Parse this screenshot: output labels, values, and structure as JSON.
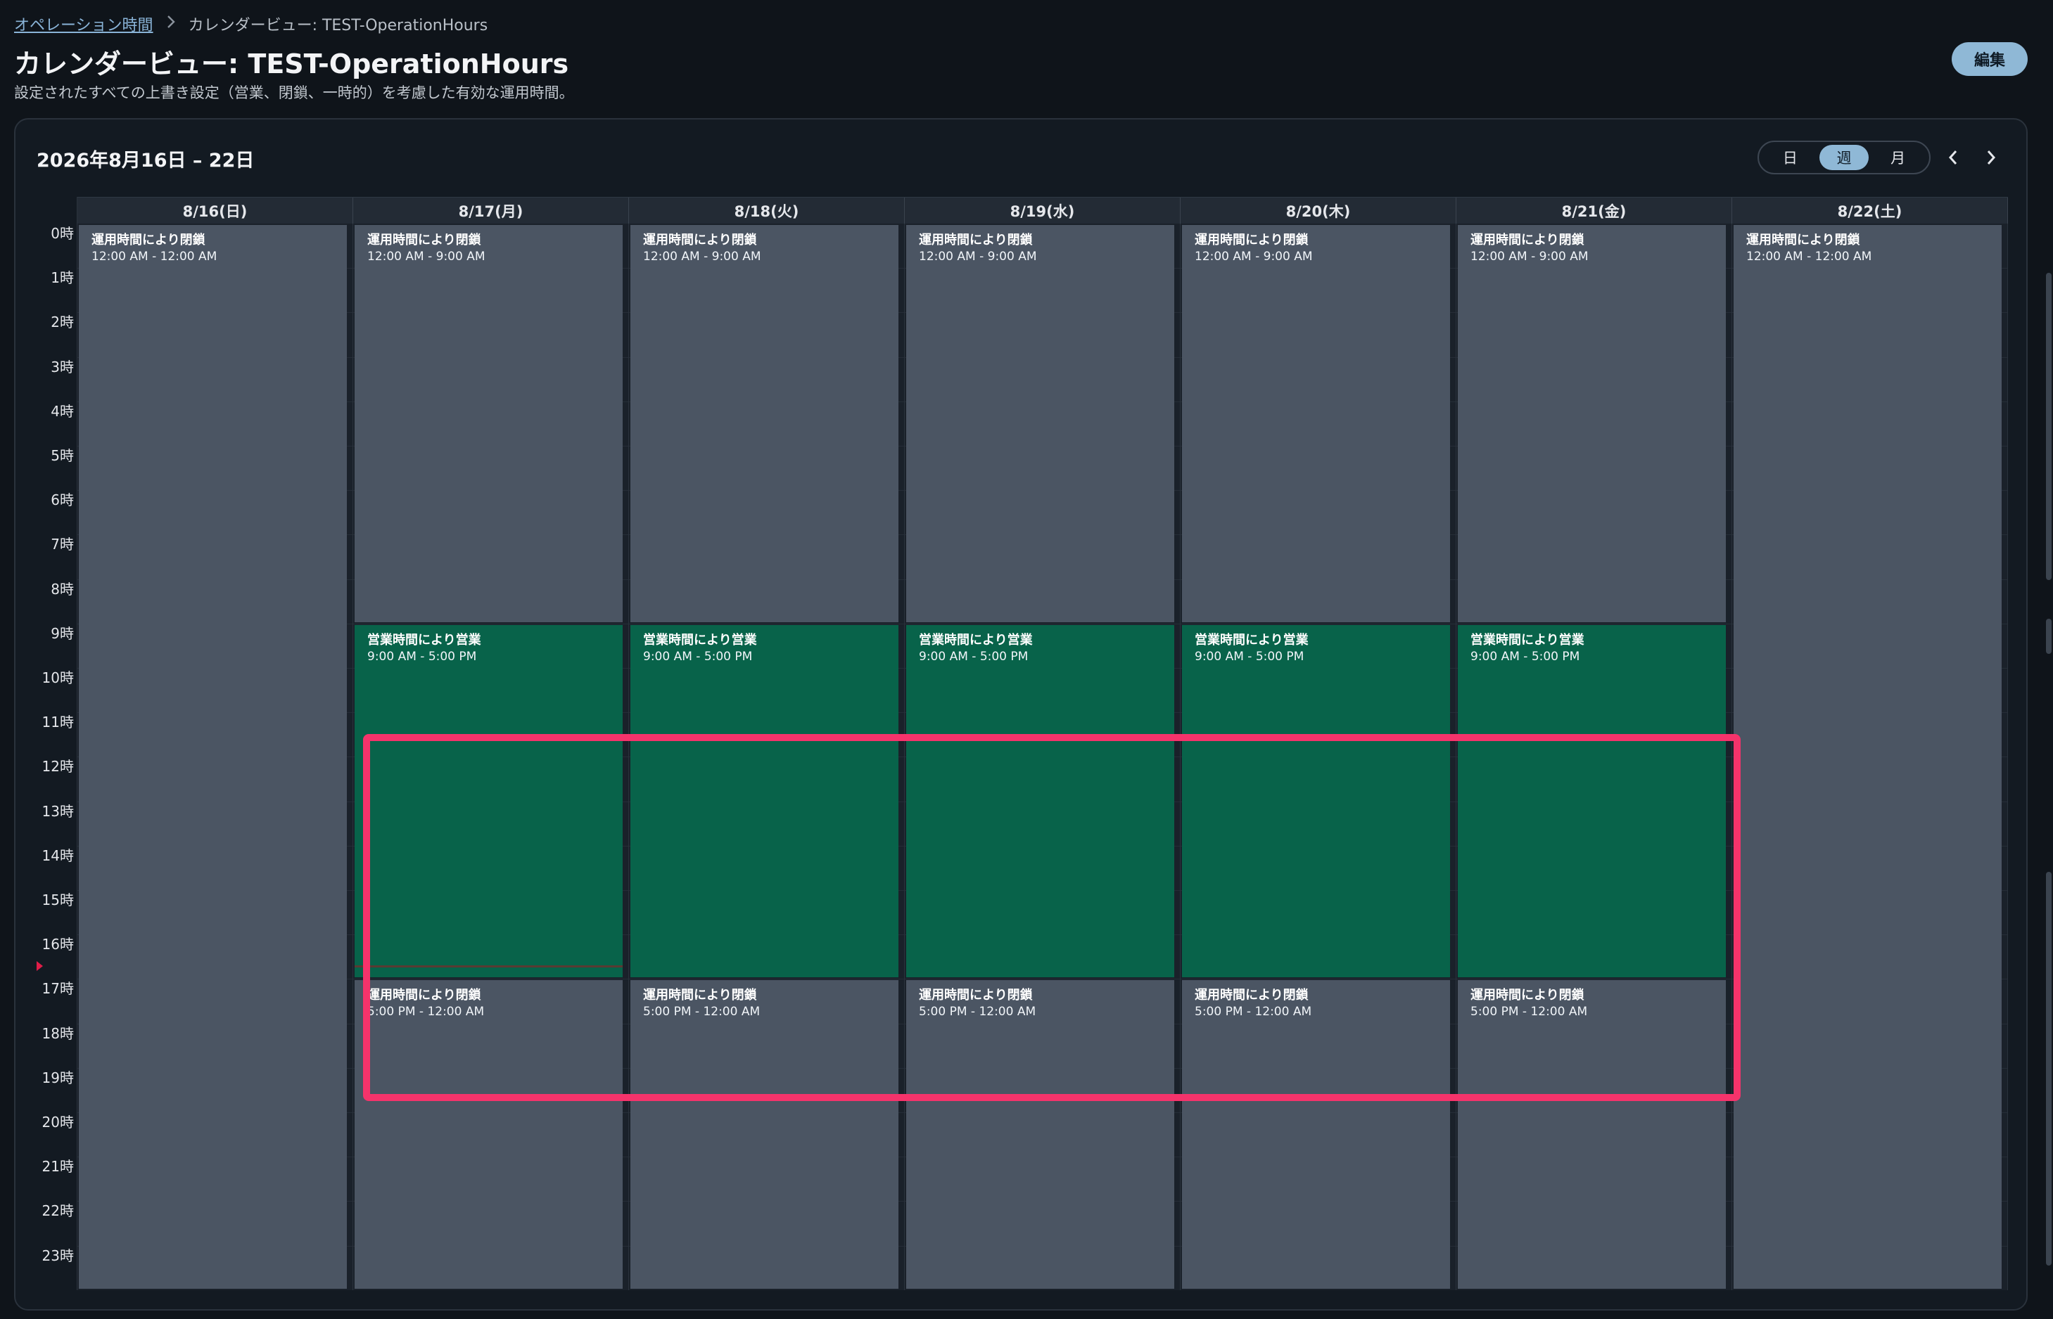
{
  "breadcrumb": {
    "parent": "オペレーション時間",
    "current": "カレンダービュー: TEST-OperationHours"
  },
  "page": {
    "title": "カレンダービュー: TEST-OperationHours",
    "subtitle": "設定されたすべての上書き設定（営業、閉鎖、一時的）を考慮した有効な運用時間。",
    "edit_label": "編集"
  },
  "calendar": {
    "range_label": "2026年8月16日 – 22日",
    "views": [
      "日",
      "週",
      "月"
    ],
    "active_view": "週",
    "hours": [
      "0時",
      "1時",
      "2時",
      "3時",
      "4時",
      "5時",
      "6時",
      "7時",
      "8時",
      "9時",
      "10時",
      "11時",
      "12時",
      "13時",
      "14時",
      "15時",
      "16時",
      "17時",
      "18時",
      "19時",
      "20時",
      "21時",
      "22時",
      "23時"
    ],
    "days": [
      {
        "label": "8/16(日)",
        "events": [
          {
            "type": "closed",
            "title": "運用時間により閉鎖",
            "time": "12:00 AM - 12:00 AM",
            "start": 0,
            "end": 24
          }
        ]
      },
      {
        "label": "8/17(月)",
        "events": [
          {
            "type": "closed",
            "title": "運用時間により閉鎖",
            "time": "12:00 AM - 9:00 AM",
            "start": 0,
            "end": 9
          },
          {
            "type": "open",
            "title": "営業時間により営業",
            "time": "9:00 AM - 5:00 PM",
            "start": 9,
            "end": 17
          },
          {
            "type": "closed",
            "title": "運用時間により閉鎖",
            "time": "5:00 PM - 12:00 AM",
            "start": 17,
            "end": 24
          }
        ]
      },
      {
        "label": "8/18(火)",
        "events": [
          {
            "type": "closed",
            "title": "運用時間により閉鎖",
            "time": "12:00 AM - 9:00 AM",
            "start": 0,
            "end": 9
          },
          {
            "type": "open",
            "title": "営業時間により営業",
            "time": "9:00 AM - 5:00 PM",
            "start": 9,
            "end": 17
          },
          {
            "type": "closed",
            "title": "運用時間により閉鎖",
            "time": "5:00 PM - 12:00 AM",
            "start": 17,
            "end": 24
          }
        ]
      },
      {
        "label": "8/19(水)",
        "events": [
          {
            "type": "closed",
            "title": "運用時間により閉鎖",
            "time": "12:00 AM - 9:00 AM",
            "start": 0,
            "end": 9
          },
          {
            "type": "open",
            "title": "営業時間により営業",
            "time": "9:00 AM - 5:00 PM",
            "start": 9,
            "end": 17
          },
          {
            "type": "closed",
            "title": "運用時間により閉鎖",
            "time": "5:00 PM - 12:00 AM",
            "start": 17,
            "end": 24
          }
        ]
      },
      {
        "label": "8/20(木)",
        "events": [
          {
            "type": "closed",
            "title": "運用時間により閉鎖",
            "time": "12:00 AM - 9:00 AM",
            "start": 0,
            "end": 9
          },
          {
            "type": "open",
            "title": "営業時間により営業",
            "time": "9:00 AM - 5:00 PM",
            "start": 9,
            "end": 17
          },
          {
            "type": "closed",
            "title": "運用時間により閉鎖",
            "time": "5:00 PM - 12:00 AM",
            "start": 17,
            "end": 24
          }
        ]
      },
      {
        "label": "8/21(金)",
        "events": [
          {
            "type": "closed",
            "title": "運用時間により閉鎖",
            "time": "12:00 AM - 9:00 AM",
            "start": 0,
            "end": 9
          },
          {
            "type": "open",
            "title": "営業時間により営業",
            "time": "9:00 AM - 5:00 PM",
            "start": 9,
            "end": 17
          },
          {
            "type": "closed",
            "title": "運用時間により閉鎖",
            "time": "5:00 PM - 12:00 AM",
            "start": 17,
            "end": 24
          }
        ]
      },
      {
        "label": "8/22(土)",
        "events": [
          {
            "type": "closed",
            "title": "運用時間により閉鎖",
            "time": "12:00 AM - 12:00 AM",
            "start": 0,
            "end": 24
          }
        ]
      }
    ],
    "now_hour": 16.7,
    "now_day_index": 1
  },
  "colors": {
    "closed": "#4b5563",
    "open": "#08634a",
    "highlight": "#f5336b",
    "accent": "#8fb8d6"
  }
}
